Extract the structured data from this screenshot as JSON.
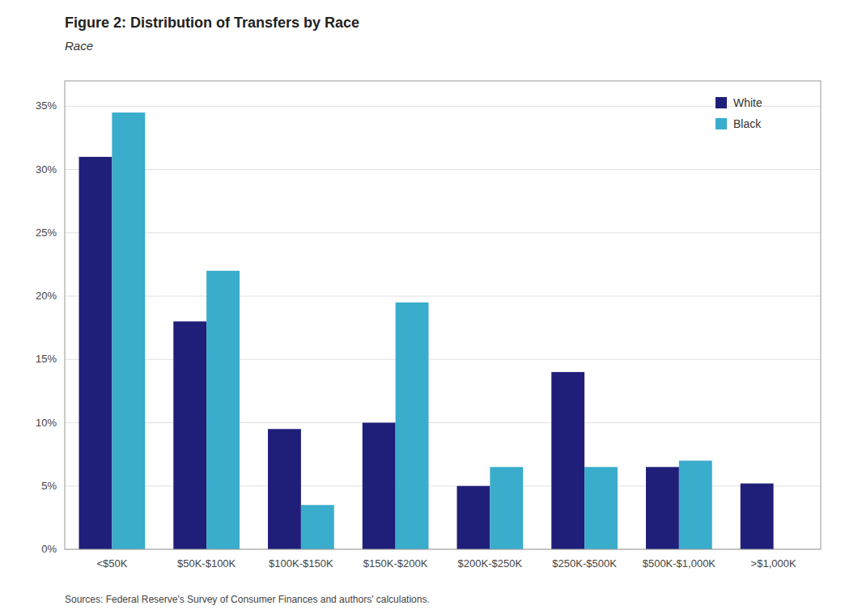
{
  "chart_data": {
    "type": "bar",
    "title": "Figure 2: Distribution of Transfers by Race",
    "subtitle": "Race",
    "source": "Sources: Federal Reserve's Survey of Consumer Finances and authors' calculations.",
    "categories": [
      "<$50K",
      "$50K-$100K",
      "$100K-$150K",
      "$150K-$200K",
      "$200K-$250K",
      "$250K-$500K",
      "$500K-$1,000K",
      ">$1,000K"
    ],
    "series": [
      {
        "name": "White",
        "color": "#1f1f7a",
        "values": [
          0.31,
          0.18,
          0.095,
          0.1,
          0.05,
          0.14,
          0.065,
          0.052
        ]
      },
      {
        "name": "Black",
        "color": "#3aaccc",
        "values": [
          0.345,
          0.22,
          0.035,
          0.195,
          0.065,
          0.065,
          0.07,
          0.0
        ]
      }
    ],
    "ylim": [
      0,
      0.37
    ],
    "yticks": [
      {
        "value": 0.0,
        "label": "0%"
      },
      {
        "value": 0.05,
        "label": "5%"
      },
      {
        "value": 0.1,
        "label": "10%"
      },
      {
        "value": 0.15,
        "label": "15%"
      },
      {
        "value": 0.2,
        "label": "20%"
      },
      {
        "value": 0.25,
        "label": "25%"
      },
      {
        "value": 0.3,
        "label": "30%"
      },
      {
        "value": 0.35,
        "label": "35%"
      }
    ],
    "grid": true,
    "legend": "upper right"
  }
}
